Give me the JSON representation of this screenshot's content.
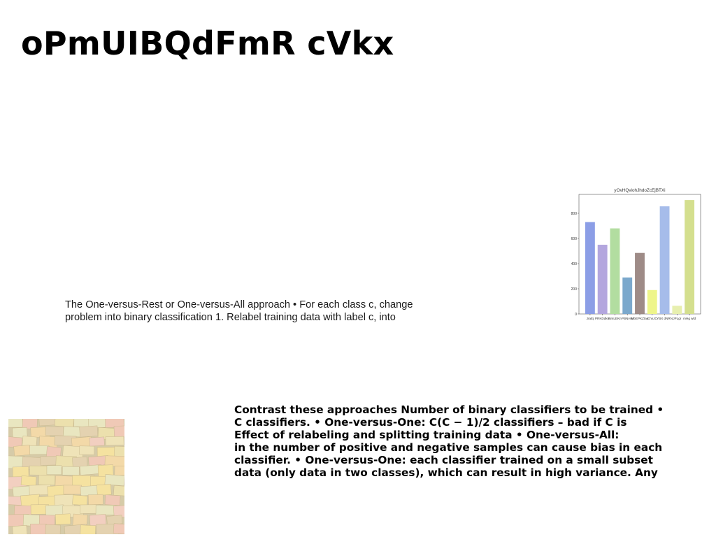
{
  "slide": {
    "title": "oPmUIBQdFmR cVkx",
    "body_lines": [
      "The One-versus-Rest or One-versus-All approach • For each class c, change",
      "problem into binary classification 1. Relabel training data with label c, into"
    ],
    "bold_lines": [
      "Contrast these approaches Number of binary classifiers to be trained •",
      "C classifiers. • One-versus-One: C(C − 1)/2 classifiers – bad if C is",
      "Effect of relabeling and splitting training data • One-versus-All:",
      "in the number of positive and negative samples can cause bias in each",
      "classifier. • One-versus-One: each classifier trained on a small subset",
      "data (only data in two classes), which can result in high variance. Any"
    ]
  },
  "chart_data": {
    "type": "bar",
    "title": "yOvHQviohJhdoZcEjBTXi",
    "categories": [
      "JraEj",
      "PRKDdkm",
      "NmLEKn",
      "PBNvmi",
      "MbEPKZtau",
      "ChnJC",
      "YBX dNRN",
      "JPLgr",
      "mHg wld"
    ],
    "values": [
      730,
      550,
      680,
      290,
      485,
      190,
      855,
      65,
      905
    ],
    "colors": [
      "#8c9ee6",
      "#b3a6de",
      "#b2dda0",
      "#7ba8cc",
      "#9e8b87",
      "#eef58a",
      "#a6bcea",
      "#e7efaf",
      "#d4df8e"
    ],
    "yticks": [
      0,
      200,
      400,
      600,
      800
    ],
    "ylim": [
      0,
      950
    ],
    "grid": false,
    "xlabel": "",
    "ylabel": ""
  },
  "image": {
    "icon": "sticky-notes-photo"
  }
}
